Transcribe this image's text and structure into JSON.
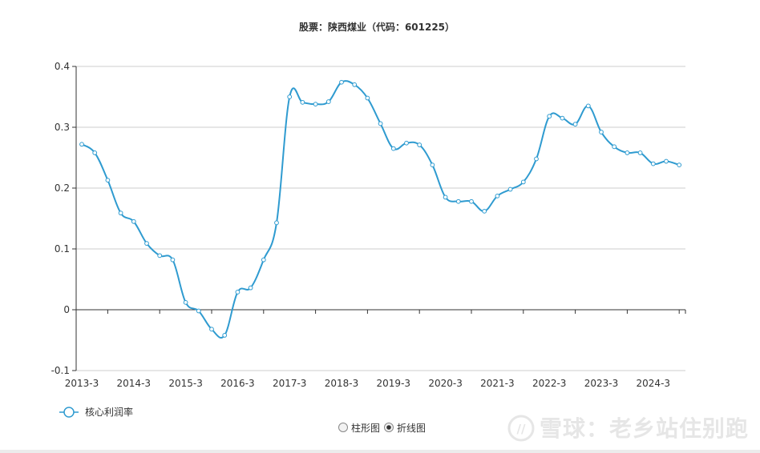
{
  "chart_data": {
    "type": "line",
    "title": "股票：陕西煤业（代码：601225）",
    "xlabel": "",
    "ylabel": "",
    "ylim": [
      -0.1,
      0.4
    ],
    "y_ticks": [
      "0.4",
      "0.3",
      "0.2",
      "0.1",
      "0",
      "-0.1"
    ],
    "x_tick_labels": [
      "2013-3",
      "2014-3",
      "2015-3",
      "2016-3",
      "2017-3",
      "2018-3",
      "2019-3",
      "2020-3",
      "2021-3",
      "2022-3",
      "2023-3",
      "2024-3"
    ],
    "grid": true,
    "legend_position": "bottom-left",
    "color": "#2f9bd0",
    "series": [
      {
        "name": "核心利润率",
        "x": [
          "2013-3",
          "2013-6",
          "2013-9",
          "2013-12",
          "2014-3",
          "2014-6",
          "2014-9",
          "2014-12",
          "2015-3",
          "2015-6",
          "2015-9",
          "2015-12",
          "2016-3",
          "2016-6",
          "2016-9",
          "2016-12",
          "2017-3",
          "2017-6",
          "2017-9",
          "2017-12",
          "2018-3",
          "2018-6",
          "2018-9",
          "2018-12",
          "2019-3",
          "2019-6",
          "2019-9",
          "2019-12",
          "2020-3",
          "2020-6",
          "2020-9",
          "2020-12",
          "2021-3",
          "2021-6",
          "2021-9",
          "2021-12",
          "2022-3",
          "2022-6",
          "2022-9",
          "2022-12",
          "2023-3",
          "2023-6",
          "2023-9",
          "2023-12",
          "2024-3",
          "2024-6",
          "2024-9"
        ],
        "values": [
          0.272,
          0.258,
          0.213,
          0.159,
          0.145,
          0.109,
          0.089,
          0.082,
          0.012,
          -0.002,
          -0.032,
          -0.042,
          0.029,
          0.036,
          0.082,
          0.143,
          0.35,
          0.341,
          0.338,
          0.342,
          0.374,
          0.37,
          0.348,
          0.306,
          0.265,
          0.274,
          0.271,
          0.238,
          0.185,
          0.178,
          0.178,
          0.162,
          0.187,
          0.198,
          0.21,
          0.248,
          0.318,
          0.315,
          0.305,
          0.335,
          0.292,
          0.268,
          0.258,
          0.258,
          0.24,
          0.244,
          0.238
        ]
      }
    ]
  },
  "controls": {
    "bar_option_label": "柱形图",
    "line_option_label": "折线图",
    "selected": "折线图"
  },
  "watermark": {
    "text": "雪球：老乡站住别跑"
  }
}
